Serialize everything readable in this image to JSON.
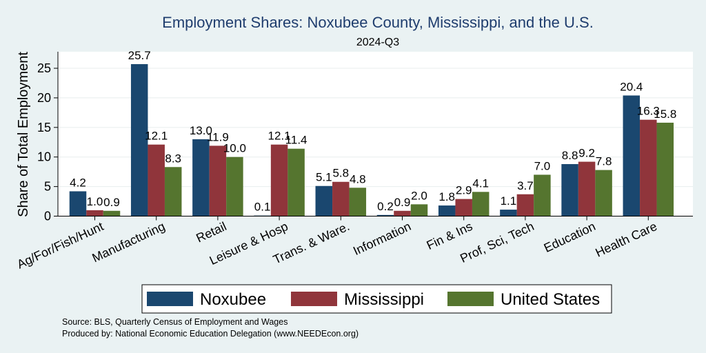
{
  "chart_data": {
    "type": "bar",
    "title": "Employment Shares: Noxubee County, Mississippi, and the U.S.",
    "subtitle": "2024-Q3",
    "ylabel": "Share of Total Employment",
    "xlabel": "",
    "ylim": [
      0,
      27.8
    ],
    "yticks": [
      0,
      5,
      10,
      15,
      20,
      25
    ],
    "grid": true,
    "legend_position": "bottom",
    "categories": [
      "Ag/For/Fish/Hunt",
      "Manufacturing",
      "Retail",
      "Leisure & Hosp",
      "Trans. & Ware.",
      "Information",
      "Fin & Ins",
      "Prof, Sci, Tech",
      "Education",
      "Health Care"
    ],
    "series": [
      {
        "name": "Noxubee",
        "color": "#1a476f",
        "values": [
          4.2,
          25.7,
          13.0,
          0.1,
          5.1,
          0.2,
          1.8,
          1.1,
          8.8,
          20.4
        ],
        "labels": [
          "4.2",
          "25.7",
          "13.0",
          "0.1",
          "5.1",
          "0.2",
          "1.8",
          "1.1",
          "8.8",
          "20.4"
        ]
      },
      {
        "name": "Mississippi",
        "color": "#90353b",
        "values": [
          1.0,
          12.1,
          11.9,
          12.1,
          5.8,
          0.9,
          2.9,
          3.7,
          9.2,
          16.3
        ],
        "labels": [
          "1.0",
          "12.1",
          "11.9",
          "12.1",
          "5.8",
          "0.9",
          "2.9",
          "3.7",
          "9.2",
          "16.3"
        ]
      },
      {
        "name": "United States",
        "color": "#55752f",
        "values": [
          0.9,
          8.3,
          10.0,
          11.4,
          4.8,
          2.0,
          4.1,
          7.0,
          7.8,
          15.8
        ],
        "labels": [
          "0.9",
          "8.3",
          "10.0",
          "11.4",
          "4.8",
          "2.0",
          "4.1",
          "7.0",
          "7.8",
          "15.8"
        ]
      }
    ]
  },
  "notes": {
    "source": "Source: BLS, Quarterly Census of Employment and Wages",
    "produced": "Produced by: National Economic Education Delegation (www.NEEDEcon.org)"
  }
}
